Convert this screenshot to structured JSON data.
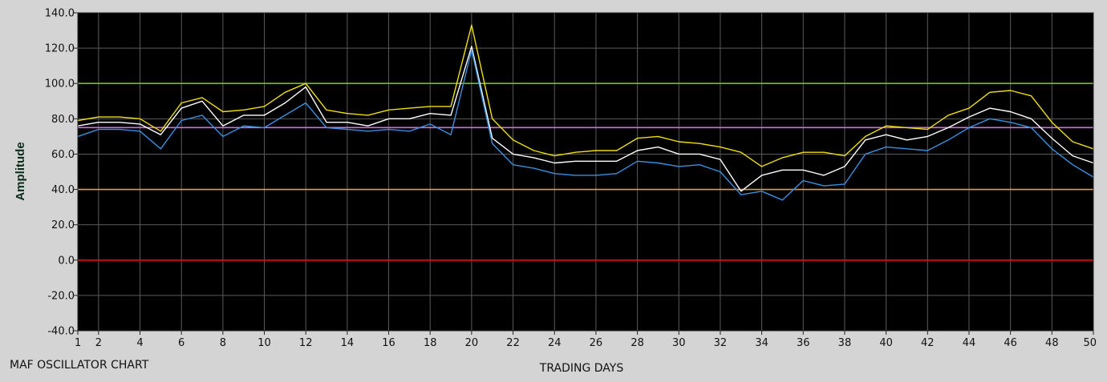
{
  "caption": "MAF OSCILLATOR CHART",
  "chart_data": {
    "type": "line",
    "title": "",
    "xlabel": "TRADING DAYS",
    "ylabel": "Amplitude",
    "xlim": [
      1,
      50
    ],
    "ylim": [
      -40,
      140
    ],
    "x_ticks": [
      1,
      2,
      4,
      6,
      8,
      10,
      12,
      14,
      16,
      18,
      20,
      22,
      24,
      26,
      28,
      30,
      32,
      34,
      36,
      38,
      40,
      42,
      44,
      46,
      48,
      50
    ],
    "x_tick_labels": [
      "1",
      "2",
      "4",
      "6",
      "8",
      "10",
      "12",
      "14",
      "16",
      "18",
      "20",
      "22",
      "24",
      "26",
      "28",
      "30",
      "32",
      "34",
      "36",
      "38",
      "40",
      "42",
      "44",
      "46",
      "48",
      "50"
    ],
    "y_ticks": [
      -40,
      -20,
      0,
      20,
      40,
      60,
      80,
      100,
      120,
      140
    ],
    "y_tick_labels": [
      "-40.0",
      "-20.0",
      "0.0",
      "20.0",
      "40.0",
      "60.0",
      "80.0",
      "100.0",
      "120.0",
      "140.0"
    ],
    "grid": true,
    "background": "#000000",
    "reference_lines": [
      {
        "value": 100,
        "color": "#6ec21c"
      },
      {
        "value": 75,
        "color": "#d070e0"
      },
      {
        "value": 40,
        "color": "#e0a040"
      },
      {
        "value": 0,
        "color": "#e01010"
      }
    ],
    "x": [
      1,
      2,
      3,
      4,
      5,
      6,
      7,
      8,
      9,
      10,
      11,
      12,
      13,
      14,
      15,
      16,
      17,
      18,
      19,
      20,
      21,
      22,
      23,
      24,
      25,
      26,
      27,
      28,
      29,
      30,
      31,
      32,
      33,
      34,
      35,
      36,
      37,
      38,
      39,
      40,
      41,
      42,
      43,
      44,
      45,
      46,
      47,
      48,
      49,
      50
    ],
    "series": [
      {
        "color": "#f0e010",
        "values": [
          79,
          81,
          81,
          80,
          73,
          89,
          92,
          84,
          85,
          87,
          95,
          100,
          85,
          83,
          82,
          85,
          86,
          87,
          87,
          133,
          80,
          68,
          62,
          59,
          61,
          62,
          62,
          69,
          70,
          67,
          66,
          64,
          61,
          53,
          58,
          61,
          61,
          59,
          70,
          76,
          75,
          74,
          82,
          86,
          95,
          96,
          93,
          78,
          67,
          63
        ]
      },
      {
        "color": "#ffffff",
        "values": [
          76,
          78,
          78,
          77,
          71,
          86,
          90,
          76,
          82,
          82,
          89,
          98,
          78,
          78,
          76,
          80,
          80,
          83,
          82,
          121,
          69,
          60,
          58,
          55,
          56,
          56,
          56,
          62,
          64,
          60,
          60,
          57,
          39,
          48,
          51,
          51,
          48,
          53,
          68,
          71,
          68,
          70,
          75,
          81,
          86,
          84,
          80,
          69,
          59,
          55
        ]
      },
      {
        "color": "#3a90e0",
        "values": [
          70,
          74,
          74,
          73,
          63,
          79,
          82,
          70,
          76,
          75,
          82,
          89,
          75,
          74,
          73,
          74,
          73,
          77,
          71,
          119,
          66,
          54,
          52,
          49,
          48,
          48,
          49,
          56,
          55,
          53,
          54,
          50,
          37,
          39,
          34,
          45,
          42,
          43,
          60,
          64,
          63,
          62,
          68,
          75,
          80,
          78,
          75,
          63,
          54,
          47
        ]
      }
    ]
  }
}
